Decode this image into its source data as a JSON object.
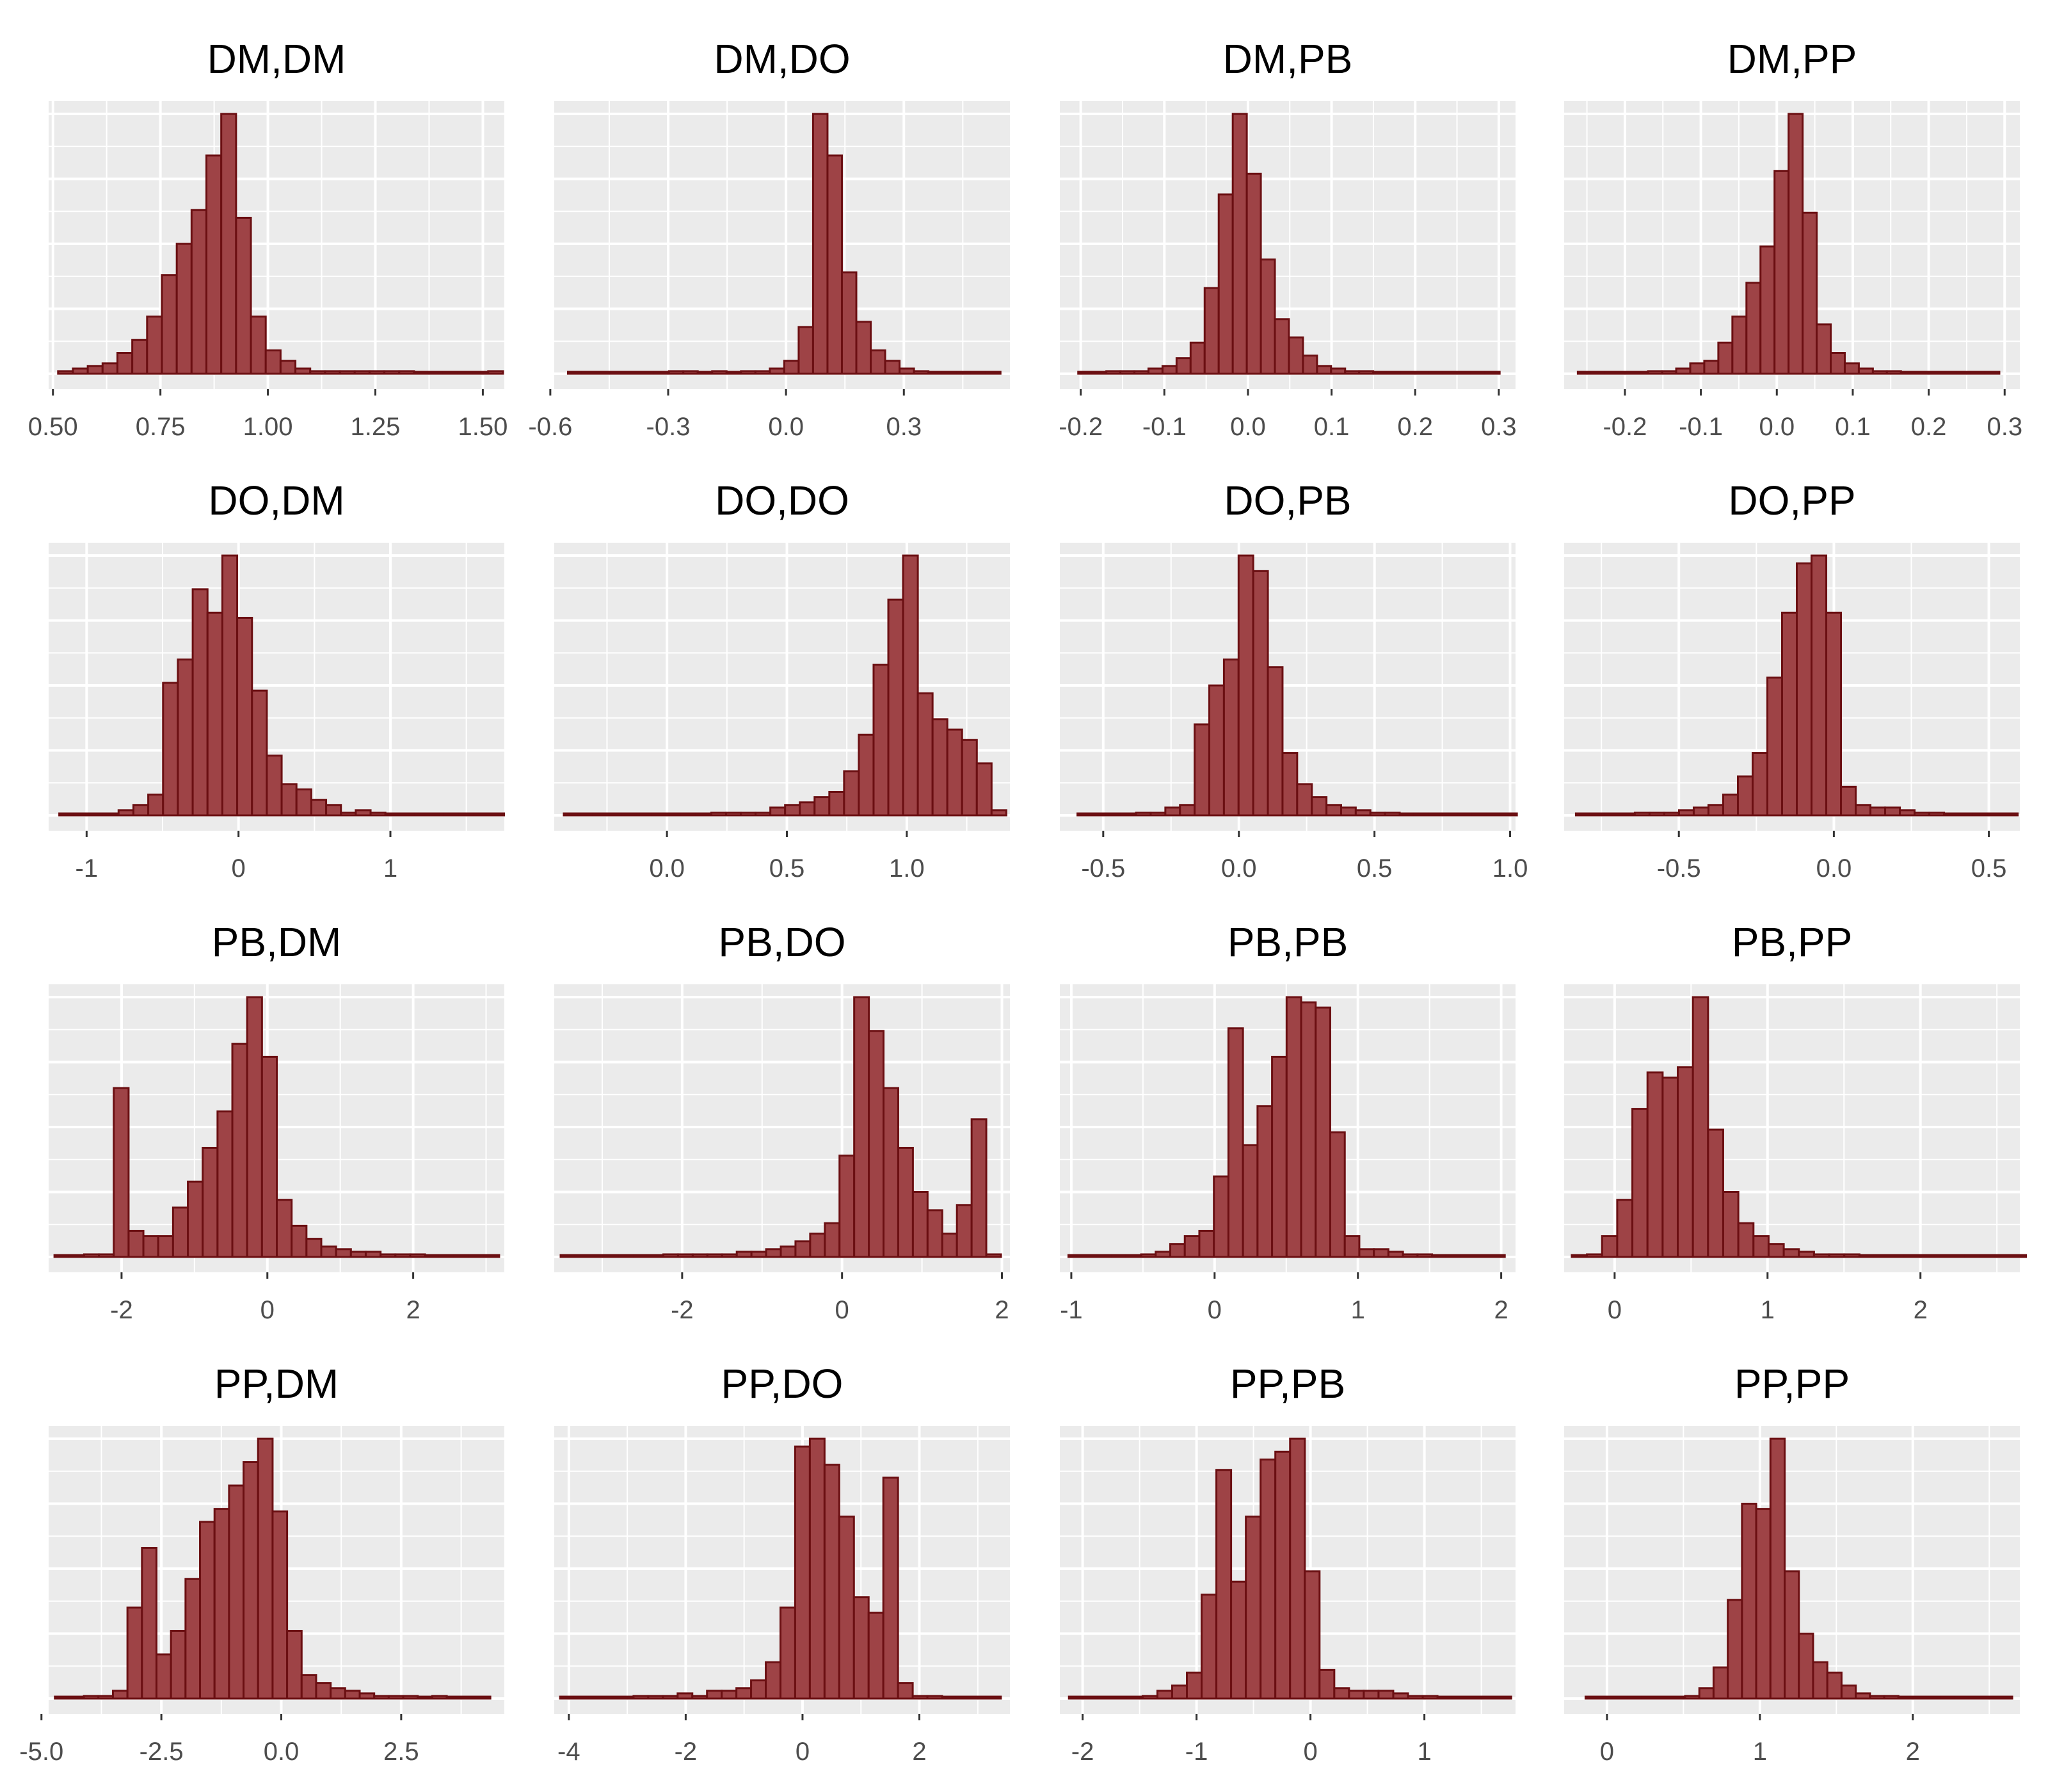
{
  "figure": {
    "panel_background": "#ebebeb",
    "grid_color": "#ffffff",
    "bar_fill": "#9e4346",
    "bar_stroke": "#6b0f12",
    "tick_color": "#333333"
  },
  "chart_data": [
    {
      "type": "bar",
      "title": "DM,DM",
      "xlim": [
        0.49,
        1.55
      ],
      "x_ticks": [
        0.5,
        0.75,
        1.0,
        1.25,
        1.5
      ],
      "x_tick_labels": [
        "0.50",
        "0.75",
        "1.00",
        "1.25",
        "1.50"
      ],
      "bin_start": 0.512,
      "bin_width": 0.0345,
      "values": [
        1,
        2,
        3,
        4,
        8,
        13,
        22,
        38,
        50,
        63,
        84,
        100,
        60,
        22,
        9,
        5,
        2,
        1,
        1,
        1,
        1,
        1,
        1,
        1,
        0,
        0,
        0,
        0,
        0,
        1
      ]
    },
    {
      "type": "bar",
      "title": "DM,DO",
      "xlim": [
        -0.59,
        0.57
      ],
      "x_ticks": [
        -0.6,
        -0.3,
        0.0,
        0.3
      ],
      "x_tick_labels": [
        "-0.6",
        "-0.3",
        "0.0",
        "0.3"
      ],
      "bin_start": -0.555,
      "bin_width": 0.0367,
      "values": [
        0,
        0,
        0,
        0,
        0,
        0,
        0,
        1,
        1,
        0,
        1,
        0,
        1,
        1,
        2,
        5,
        18,
        100,
        84,
        39,
        20,
        9,
        5,
        2,
        1,
        0,
        0,
        0,
        0,
        0
      ]
    },
    {
      "type": "bar",
      "title": "DM,PB",
      "xlim": [
        -0.225,
        0.32
      ],
      "x_ticks": [
        -0.2,
        -0.1,
        0.0,
        0.1,
        0.2,
        0.3
      ],
      "x_tick_labels": [
        "-0.2",
        "-0.1",
        "0.0",
        "0.1",
        "0.2",
        "0.3"
      ],
      "bin_start": -0.203,
      "bin_width": 0.0168,
      "values": [
        0,
        0,
        1,
        1,
        1,
        2,
        3,
        6,
        12,
        33,
        69,
        100,
        77,
        44,
        21,
        14,
        7,
        3,
        2,
        1,
        1,
        0,
        0,
        0,
        0,
        0,
        0,
        0,
        0,
        0
      ]
    },
    {
      "type": "bar",
      "title": "DM,PP",
      "xlim": [
        -0.28,
        0.32
      ],
      "x_ticks": [
        -0.2,
        -0.1,
        0.0,
        0.1,
        0.2,
        0.3
      ],
      "x_tick_labels": [
        "-0.2",
        "-0.1",
        "0.0",
        "0.1",
        "0.2",
        "0.3"
      ],
      "bin_start": -0.262,
      "bin_width": 0.0185,
      "values": [
        0,
        0,
        0,
        0,
        0,
        1,
        1,
        2,
        4,
        5,
        12,
        22,
        35,
        49,
        78,
        100,
        62,
        19,
        8,
        4,
        2,
        1,
        1,
        0,
        0,
        0,
        0,
        0,
        0,
        0
      ]
    },
    {
      "type": "bar",
      "title": "DO,DM",
      "xlim": [
        -1.25,
        1.75
      ],
      "x_ticks": [
        -1,
        0,
        1
      ],
      "x_tick_labels": [
        "-1",
        "0",
        "1"
      ],
      "bin_start": -1.18,
      "bin_width": 0.0976,
      "values": [
        0,
        0,
        0,
        0,
        2,
        4,
        8,
        51,
        60,
        87,
        78,
        100,
        76,
        48,
        23,
        12,
        10,
        6,
        4,
        1,
        2,
        1,
        0,
        0,
        0,
        0,
        0,
        0,
        0,
        0
      ]
    },
    {
      "type": "bar",
      "title": "DO,DO",
      "xlim": [
        -0.47,
        1.43
      ],
      "x_ticks": [
        0.0,
        0.5,
        1.0
      ],
      "x_tick_labels": [
        "0.0",
        "0.5",
        "1.0"
      ],
      "bin_start": -0.43,
      "bin_width": 0.0615,
      "values": [
        0,
        0,
        0,
        0,
        0,
        0,
        0,
        0,
        0,
        0,
        1,
        1,
        1,
        1,
        3,
        4,
        5,
        7,
        9,
        17,
        31,
        58,
        83,
        100,
        47,
        37,
        33,
        29,
        20,
        2
      ]
    },
    {
      "type": "bar",
      "title": "DO,PB",
      "xlim": [
        -0.66,
        1.02
      ],
      "x_ticks": [
        -0.5,
        0.0,
        0.5,
        1.0
      ],
      "x_tick_labels": [
        "-0.5",
        "0.0",
        "0.5",
        "1.0"
      ],
      "bin_start": -0.595,
      "bin_width": 0.054,
      "values": [
        0,
        0,
        0,
        0,
        1,
        1,
        3,
        4,
        35,
        50,
        60,
        100,
        94,
        57,
        24,
        12,
        7,
        4,
        3,
        2,
        1,
        1,
        0,
        0,
        0,
        0,
        0,
        0,
        0,
        0
      ]
    },
    {
      "type": "bar",
      "title": "DO,PP",
      "xlim": [
        -0.87,
        0.6
      ],
      "x_ticks": [
        -0.5,
        0.0,
        0.5
      ],
      "x_tick_labels": [
        "-0.5",
        "0.0",
        "0.5"
      ],
      "bin_start": -0.832,
      "bin_width": 0.0475,
      "values": [
        0,
        0,
        0,
        0,
        1,
        1,
        1,
        2,
        3,
        4,
        8,
        15,
        24,
        53,
        78,
        97,
        100,
        78,
        11,
        4,
        3,
        3,
        2,
        1,
        1,
        0,
        0,
        0,
        0,
        0
      ]
    },
    {
      "type": "bar",
      "title": "PB,DM",
      "xlim": [
        -3.0,
        3.25
      ],
      "x_ticks": [
        -2,
        0,
        2
      ],
      "x_tick_labels": [
        "-2",
        "0",
        "2"
      ],
      "bin_start": -2.92,
      "bin_width": 0.2033,
      "values": [
        0,
        0,
        1,
        1,
        65,
        10,
        8,
        8,
        19,
        29,
        42,
        56,
        82,
        100,
        77,
        22,
        12,
        7,
        4,
        3,
        2,
        2,
        1,
        1,
        1,
        0,
        0,
        0,
        0,
        0
      ]
    },
    {
      "type": "bar",
      "title": "PB,DO",
      "xlim": [
        -3.6,
        2.1
      ],
      "x_ticks": [
        -2,
        0,
        2
      ],
      "x_tick_labels": [
        "-2",
        "0",
        "2"
      ],
      "bin_start": -3.52,
      "bin_width": 0.1836,
      "values": [
        0,
        0,
        0,
        0,
        0,
        0,
        0,
        1,
        1,
        1,
        1,
        1,
        2,
        2,
        3,
        4,
        6,
        9,
        13,
        39,
        100,
        87,
        65,
        42,
        25,
        18,
        9,
        20,
        53,
        1
      ]
    },
    {
      "type": "bar",
      "title": "PB,PB",
      "xlim": [
        -1.08,
        2.1
      ],
      "x_ticks": [
        -1,
        0,
        1,
        2
      ],
      "x_tick_labels": [
        "-1",
        "0",
        "1",
        "2"
      ],
      "bin_start": -1.02,
      "bin_width": 0.1015,
      "values": [
        0,
        0,
        0,
        0,
        0,
        1,
        2,
        5,
        8,
        10,
        31,
        88,
        43,
        58,
        77,
        100,
        98,
        96,
        48,
        8,
        3,
        3,
        2,
        1,
        1,
        0,
        0,
        0,
        0,
        0
      ]
    },
    {
      "type": "bar",
      "title": "PB,PP",
      "xlim": [
        -0.33,
        2.65
      ],
      "x_ticks": [
        0,
        1,
        2
      ],
      "x_tick_labels": [
        "0",
        "1",
        "2"
      ],
      "bin_start": -0.28,
      "bin_width": 0.099,
      "values": [
        0,
        1,
        8,
        22,
        57,
        71,
        69,
        73,
        100,
        49,
        25,
        13,
        8,
        5,
        3,
        2,
        1,
        1,
        1,
        0,
        0,
        0,
        0,
        0,
        0,
        0,
        0,
        0,
        0,
        0
      ]
    },
    {
      "type": "bar",
      "title": "PP,DM",
      "xlim": [
        -4.85,
        4.65
      ],
      "x_ticks": [
        -5.0,
        -2.5,
        0.0,
        2.5
      ],
      "x_tick_labels": [
        "-5.0",
        "-2.5",
        "0.0",
        "2.5"
      ],
      "bin_start": -4.72,
      "bin_width": 0.3026,
      "values": [
        0,
        0,
        1,
        1,
        3,
        35,
        58,
        17,
        26,
        46,
        68,
        73,
        82,
        91,
        100,
        72,
        26,
        9,
        6,
        4,
        3,
        2,
        1,
        1,
        1,
        0,
        1,
        0,
        0,
        0
      ]
    },
    {
      "type": "bar",
      "title": "PP,DO",
      "xlim": [
        -4.25,
        3.55
      ],
      "x_ticks": [
        -4,
        -2,
        0,
        2
      ],
      "x_tick_labels": [
        "-4",
        "-2",
        "0",
        "2"
      ],
      "bin_start": -4.15,
      "bin_width": 0.2515,
      "values": [
        0,
        0,
        0,
        0,
        0,
        1,
        1,
        1,
        2,
        1,
        3,
        3,
        4,
        7,
        14,
        35,
        97,
        100,
        90,
        70,
        39,
        33,
        85,
        6,
        1,
        1,
        0,
        0,
        0,
        0
      ]
    },
    {
      "type": "bar",
      "title": "PP,PB",
      "xlim": [
        -2.2,
        1.8
      ],
      "x_ticks": [
        -2,
        -1,
        0,
        1
      ],
      "x_tick_labels": [
        "-2",
        "-1",
        "0",
        "1"
      ],
      "bin_start": -2.12,
      "bin_width": 0.1294,
      "values": [
        0,
        0,
        0,
        0,
        0,
        1,
        3,
        5,
        10,
        40,
        88,
        45,
        70,
        92,
        95,
        100,
        49,
        11,
        4,
        3,
        3,
        3,
        2,
        1,
        1,
        0,
        0,
        0,
        0,
        0
      ]
    },
    {
      "type": "bar",
      "title": "PP,PP",
      "xlim": [
        -0.28,
        2.7
      ],
      "x_ticks": [
        0,
        1,
        2
      ],
      "x_tick_labels": [
        "0",
        "1",
        "2"
      ],
      "bin_start": -0.14,
      "bin_width": 0.093,
      "values": [
        0,
        0,
        0,
        0,
        0,
        0,
        0,
        1,
        4,
        12,
        38,
        75,
        73,
        100,
        49,
        25,
        14,
        10,
        5,
        2,
        1,
        1,
        0,
        0,
        0,
        0,
        0,
        0,
        0,
        0
      ]
    }
  ]
}
